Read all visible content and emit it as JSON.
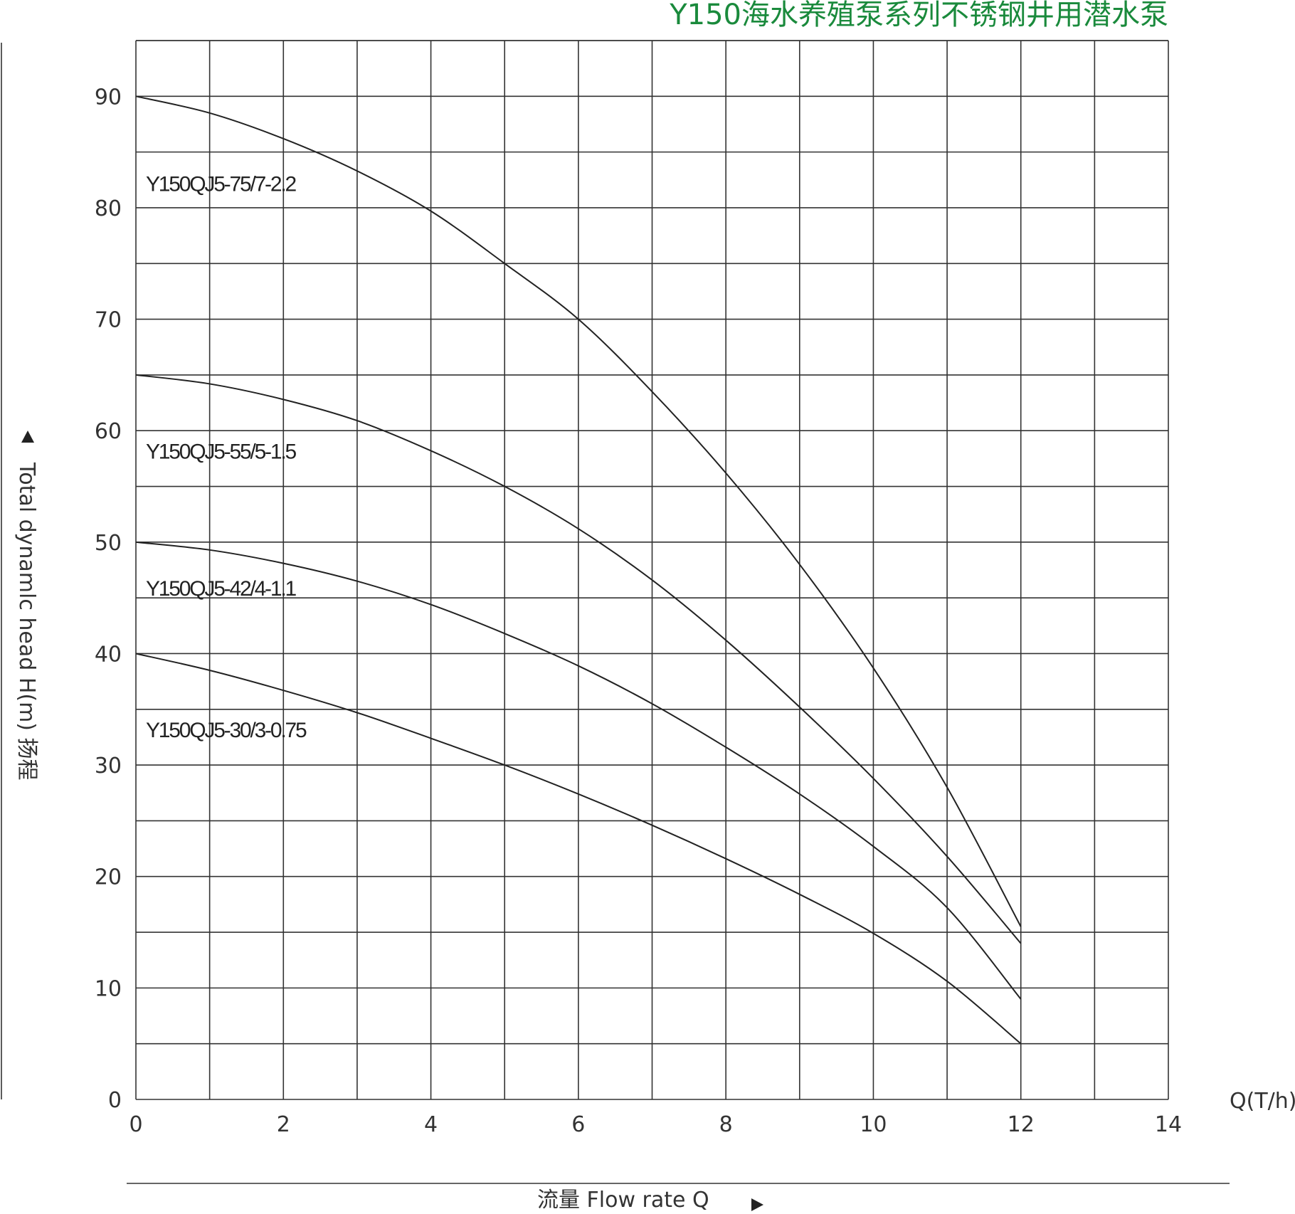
{
  "chart_data": {
    "type": "line",
    "title": "Y150海水养殖泵系列不锈钢井用潜水泵",
    "xlabel": "流量  Flow rate Q",
    "ylabel": "Total dynamlc head H(m) 扬程",
    "x_unit_label": "Q(T/h)",
    "xlim": [
      0,
      14
    ],
    "ylim": [
      0,
      95
    ],
    "x_ticks": [
      0,
      2,
      4,
      6,
      8,
      10,
      12,
      14
    ],
    "y_ticks": [
      0,
      10,
      20,
      30,
      40,
      50,
      60,
      70,
      80,
      90
    ],
    "x_grid_step": 1,
    "y_grid_step": 5,
    "grid": true,
    "series": [
      {
        "name": "Y150QJ5-75/7-2.2",
        "x": [
          0,
          1,
          2,
          3,
          4,
          5,
          6,
          7,
          8,
          9,
          10,
          11,
          12
        ],
        "y": [
          90,
          88.5,
          86.2,
          83.3,
          79.7,
          75,
          70,
          63.5,
          56.2,
          48,
          38.7,
          28,
          15.5
        ]
      },
      {
        "name": "Y150QJ5-55/5-1.5",
        "x": [
          0,
          1,
          2,
          3,
          4,
          5,
          6,
          7,
          8,
          9,
          10,
          11,
          12
        ],
        "y": [
          65,
          64.2,
          62.8,
          60.9,
          58.2,
          55,
          51.2,
          46.6,
          41.2,
          35.2,
          28.8,
          21.8,
          14
        ]
      },
      {
        "name": "Y150QJ5-42/4-1.1",
        "x": [
          0,
          1,
          2,
          3,
          4,
          5,
          6,
          7,
          8,
          9,
          10,
          11,
          12
        ],
        "y": [
          50,
          49.3,
          48.1,
          46.5,
          44.4,
          41.8,
          38.9,
          35.5,
          31.6,
          27.4,
          22.7,
          17.2,
          9
        ]
      },
      {
        "name": "Y150QJ5-30/3-0.75",
        "x": [
          0,
          1,
          2,
          3,
          4,
          5,
          6,
          7,
          8,
          9,
          10,
          11,
          12
        ],
        "y": [
          40,
          38.5,
          36.7,
          34.7,
          32.4,
          30,
          27.4,
          24.6,
          21.6,
          18.4,
          14.9,
          10.6,
          5
        ]
      }
    ],
    "series_label_anchor_y": [
      81.5,
      57.5,
      45.2,
      32.5
    ]
  }
}
